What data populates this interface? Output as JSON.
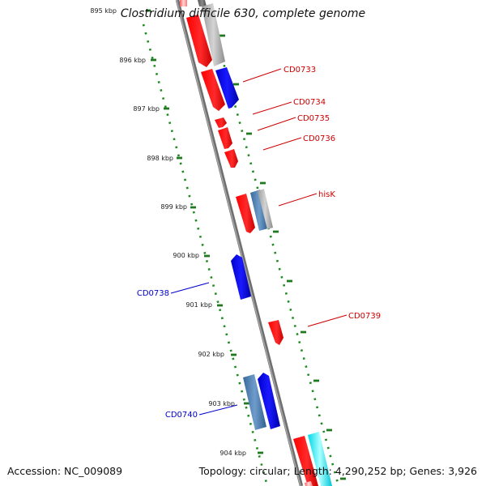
{
  "title": "Clostridium difficile 630, complete genome",
  "footer": {
    "accession": "Accession: NC_009089",
    "summary": "Topology: circular; Length: 4,290,252 bp; Genes: 3,926"
  },
  "ticks": [
    "895 kbp",
    "896 kbp",
    "897 kbp",
    "898 kbp",
    "899 kbp",
    "900 kbp",
    "901 kbp",
    "902 kbp",
    "903 kbp",
    "904 kbp"
  ],
  "gene_labels": {
    "CD0733": "CD0733",
    "CD0734": "CD0734",
    "CD0735": "CD0735",
    "CD0736": "CD0736",
    "hisK": "hisK",
    "CD0738": "CD0738",
    "CD0739": "CD0739",
    "CD0740": "CD0740"
  },
  "colors": {
    "forward_label": "#cc0000",
    "reverse_label": "#0000cc",
    "feature_red": "#ff0000",
    "feature_blue": "#0000ee",
    "feature_steel": "#4a7fb5",
    "feature_gray": "#b0b0b0",
    "feature_cyan": "#00e5ee",
    "tick_green": "#228822",
    "backbone": "#888888"
  }
}
